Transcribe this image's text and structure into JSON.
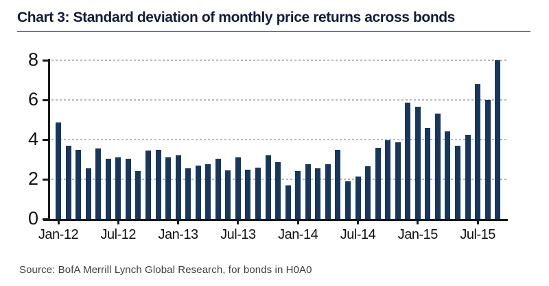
{
  "header": {
    "title": "Chart 3: Standard deviation of monthly price returns across bonds"
  },
  "footer": {
    "source": "Source: BofA Merrill Lynch Global Research, for bonds in H0A0"
  },
  "chart_data": {
    "type": "bar",
    "title": "Chart 3: Standard deviation of monthly price returns across bonds",
    "categories": [
      "Jan-12",
      "Feb-12",
      "Mar-12",
      "Apr-12",
      "May-12",
      "Jun-12",
      "Jul-12",
      "Aug-12",
      "Sep-12",
      "Oct-12",
      "Nov-12",
      "Dec-12",
      "Jan-13",
      "Feb-13",
      "Mar-13",
      "Apr-13",
      "May-13",
      "Jun-13",
      "Jul-13",
      "Aug-13",
      "Sep-13",
      "Oct-13",
      "Nov-13",
      "Dec-13",
      "Jan-14",
      "Feb-14",
      "Mar-14",
      "Apr-14",
      "May-14",
      "Jun-14",
      "Jul-14",
      "Aug-14",
      "Sep-14",
      "Oct-14",
      "Nov-14",
      "Dec-14",
      "Jan-15",
      "Feb-15",
      "Mar-15",
      "Apr-15",
      "May-15",
      "Jun-15",
      "Jul-15",
      "Aug-15",
      "Sep-15"
    ],
    "values": [
      4.85,
      3.7,
      3.5,
      2.55,
      3.55,
      3.05,
      3.1,
      3.05,
      2.4,
      3.45,
      3.5,
      3.1,
      3.2,
      2.55,
      2.7,
      2.75,
      3.05,
      2.45,
      3.1,
      2.5,
      2.6,
      3.2,
      2.85,
      1.7,
      2.4,
      2.75,
      2.55,
      2.75,
      3.5,
      1.9,
      2.15,
      2.65,
      3.6,
      3.95,
      3.85,
      5.85,
      5.65,
      4.6,
      5.3,
      4.4,
      3.7,
      4.25,
      6.8,
      6.0,
      8.0
    ],
    "xlabel": "",
    "ylabel": "",
    "ylim": [
      0,
      8
    ],
    "yticks": [
      0,
      2,
      4,
      6,
      8
    ],
    "xtick_labels": [
      "Jan-12",
      "Jul-12",
      "Jan-13",
      "Jul-13",
      "Jan-14",
      "Jul-14",
      "Jan-15",
      "Jul-15"
    ],
    "xtick_every": 6,
    "grid": "horizontal-dashed",
    "legend_position": "none",
    "bar_color": "#17375e",
    "source": "Source: BofA Merrill Lynch Global Research, for bonds in H0A0"
  },
  "colors": {
    "bar": "#17375e",
    "title_text": "#131c38",
    "title_rule": "#4f81bd",
    "axis": "#1a1a1a",
    "gridline": "#b9b9b9",
    "tick_text": "#111111",
    "source_text": "#3d3d3d"
  }
}
